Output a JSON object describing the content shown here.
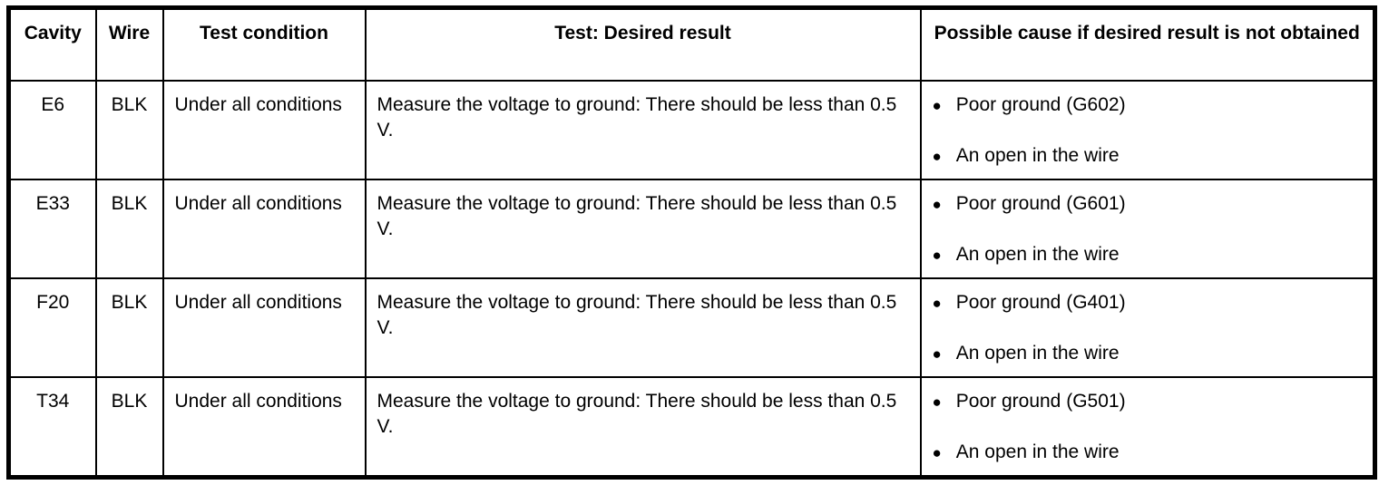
{
  "table": {
    "bullet_glyph": "●",
    "colors": {
      "border": "#000000",
      "text": "#000000",
      "background": "#ffffff"
    },
    "headers": {
      "cavity": "Cavity",
      "wire": "Wire",
      "condition": "Test condition",
      "test": "Test: Desired result",
      "cause": "Possible cause if desired result is not obtained"
    },
    "rows": [
      {
        "cavity": "E6",
        "wire": "BLK",
        "condition": "Under all conditions",
        "test": "Measure the voltage to ground: There should be less than 0.5 V.",
        "causes": [
          "Poor ground (G602)",
          "An open in the wire"
        ]
      },
      {
        "cavity": "E33",
        "wire": "BLK",
        "condition": "Under all conditions",
        "test": "Measure the voltage to ground: There should be less than 0.5 V.",
        "causes": [
          "Poor ground (G601)",
          "An open in the wire"
        ]
      },
      {
        "cavity": "F20",
        "wire": "BLK",
        "condition": "Under all conditions",
        "test": "Measure the voltage to ground: There should be less than 0.5 V.",
        "causes": [
          "Poor ground (G401)",
          "An open in the wire"
        ]
      },
      {
        "cavity": "T34",
        "wire": "BLK",
        "condition": "Under all conditions",
        "test": "Measure the voltage to ground: There should be less than 0.5 V.",
        "causes": [
          "Poor ground (G501)",
          "An open in the wire"
        ]
      }
    ]
  }
}
